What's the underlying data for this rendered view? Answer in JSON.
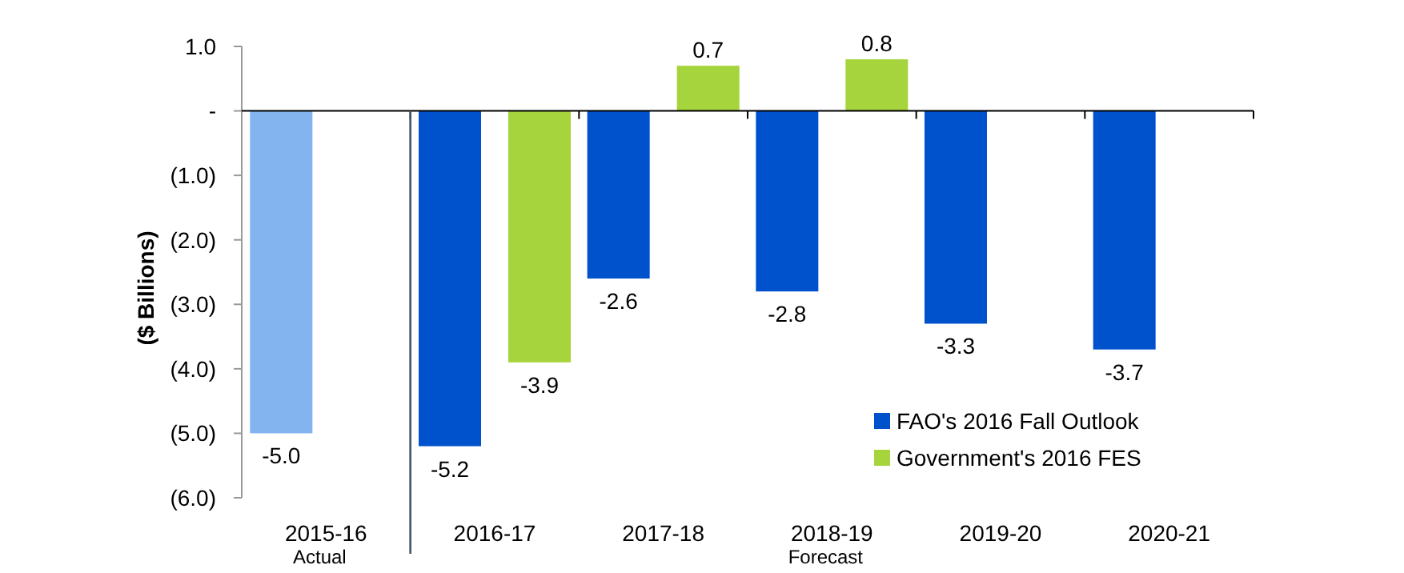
{
  "chart_data": {
    "type": "bar",
    "ylabel": "($ Billions)",
    "categories": [
      "2015-16",
      "2016-17",
      "2017-18",
      "2018-19",
      "2019-20",
      "2020-21"
    ],
    "series": [
      {
        "name": "FAO's 2016 Fall Outlook",
        "color": "#0052cc",
        "colors": [
          "#84b4f0",
          "#0052cc",
          "#0052cc",
          "#0052cc",
          "#0052cc",
          "#0052cc"
        ],
        "values": [
          -5.0,
          -5.2,
          -2.6,
          -2.8,
          -3.3,
          -3.7
        ],
        "value_labels": [
          "-5.0",
          "-5.2",
          "-2.6",
          "-2.8",
          "-3.3",
          "-3.7"
        ]
      },
      {
        "name": "Government's 2016 FES",
        "color": "#a6d43c",
        "values": [
          null,
          -3.9,
          0.7,
          0.8,
          null,
          null
        ],
        "value_labels": [
          null,
          "-3.9",
          "0.7",
          "0.8",
          null,
          null
        ]
      }
    ],
    "ylim": [
      -6,
      1
    ],
    "yticks": [
      {
        "value": 1,
        "label": "1.0"
      },
      {
        "value": 0,
        "label": "-"
      },
      {
        "value": -1,
        "label": "(1.0)"
      },
      {
        "value": -2,
        "label": "(2.0)"
      },
      {
        "value": -3,
        "label": "(3.0)"
      },
      {
        "value": -4,
        "label": "(4.0)"
      },
      {
        "value": -5,
        "label": "(5.0)"
      },
      {
        "value": -6,
        "label": "(6.0)"
      }
    ],
    "ref_lines": [
      {
        "axis": "x",
        "value": "2016-17",
        "color": "#44546a"
      }
    ],
    "annotations": [
      "Actual",
      "Forecast"
    ],
    "legend": "bottom right",
    "grid": false
  }
}
